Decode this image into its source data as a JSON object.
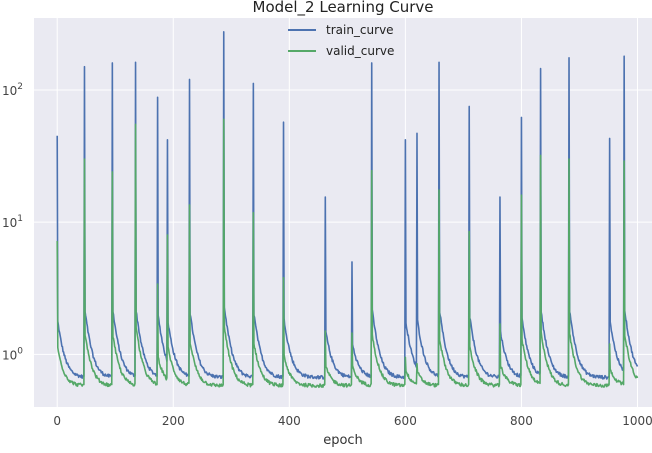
{
  "chart_data": {
    "type": "line",
    "title": "Model_2 Learning Curve",
    "xlabel": "epoch",
    "ylabel": "",
    "xlim": [
      -40,
      1025
    ],
    "ylim": [
      0.4,
      350
    ],
    "yscale": "log",
    "grid": true,
    "legend_placement": "top-center",
    "x_ticks": [
      0,
      200,
      400,
      600,
      800,
      1000
    ],
    "x_tick_labels": [
      "0",
      "200",
      "400",
      "600",
      "800",
      "1000"
    ],
    "y_ticks": [
      1,
      10,
      100
    ],
    "y_tick_labels": [
      "10",
      "10",
      "10"
    ],
    "y_tick_exponents": [
      "0",
      "1",
      "2"
    ],
    "background_color": "#EAEAF2",
    "series": [
      {
        "name": "train_curve",
        "color": "#4C72B0",
        "floor": 0.67,
        "spikes": [
          [
            0,
            45
          ],
          [
            47,
            150
          ],
          [
            95,
            160
          ],
          [
            135,
            162
          ],
          [
            173,
            88
          ],
          [
            190,
            42
          ],
          [
            228,
            120
          ],
          [
            287,
            275
          ],
          [
            338,
            112
          ],
          [
            390,
            57
          ],
          [
            462,
            15.5
          ],
          [
            508,
            5.0
          ],
          [
            542,
            160
          ],
          [
            600,
            42
          ],
          [
            620,
            47
          ],
          [
            658,
            162
          ],
          [
            710,
            75
          ],
          [
            763,
            15.5
          ],
          [
            800,
            62
          ],
          [
            833,
            145
          ],
          [
            882,
            175
          ],
          [
            952,
            43
          ],
          [
            977,
            180
          ]
        ]
      },
      {
        "name": "valid_curve",
        "color": "#55A868",
        "floor": 0.58,
        "spikes": [
          [
            0,
            7.2
          ],
          [
            47,
            30
          ],
          [
            95,
            24
          ],
          [
            135,
            55
          ],
          [
            173,
            3.4
          ],
          [
            190,
            8.0
          ],
          [
            228,
            13.5
          ],
          [
            287,
            60
          ],
          [
            338,
            11.8
          ],
          [
            390,
            3.8
          ],
          [
            462,
            1.5
          ],
          [
            508,
            1.45
          ],
          [
            542,
            24.5
          ],
          [
            600,
            0.95
          ],
          [
            620,
            0.85
          ],
          [
            658,
            17.5
          ],
          [
            710,
            8.5
          ],
          [
            763,
            1.7
          ],
          [
            800,
            16.0
          ],
          [
            833,
            32
          ],
          [
            882,
            30
          ],
          [
            952,
            1.2
          ],
          [
            977,
            29
          ]
        ]
      }
    ]
  }
}
